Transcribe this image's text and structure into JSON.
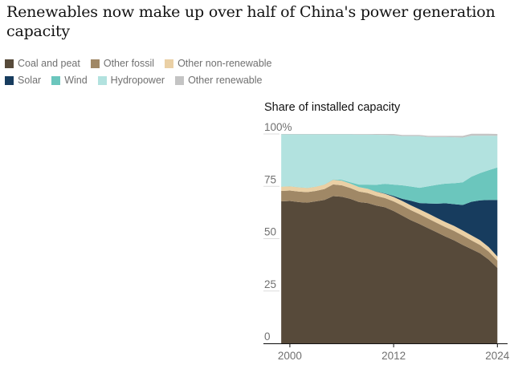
{
  "header": {
    "title": "Renewables now make up over half of China's power generation capacity"
  },
  "legend": {
    "row1": [
      {
        "label": "Coal and peat",
        "color": "#574a3a"
      },
      {
        "label": "Other fossil",
        "color": "#a08866"
      },
      {
        "label": "Other non-renewable",
        "color": "#ead0a5"
      }
    ],
    "row2": [
      {
        "label": "Solar",
        "color": "#173c5e"
      },
      {
        "label": "Wind",
        "color": "#6bc6bd"
      },
      {
        "label": "Hydropower",
        "color": "#b2e2df"
      },
      {
        "label": "Other renewable",
        "color": "#c4c4c4"
      }
    ]
  },
  "chart_data": {
    "type": "area",
    "stacked": true,
    "title": "Share of installed capacity",
    "ylim": [
      0,
      100
    ],
    "yticks": [
      {
        "value": 0,
        "label": "0"
      },
      {
        "value": 25,
        "label": "25"
      },
      {
        "value": 50,
        "label": "50"
      },
      {
        "value": 75,
        "label": "75"
      },
      {
        "value": 100,
        "label": "100%"
      }
    ],
    "xlim": [
      1998.8,
      2024.9
    ],
    "xticks": [
      {
        "value": 2000,
        "label": "2000"
      },
      {
        "value": 2012,
        "label": "2012"
      },
      {
        "value": 2024,
        "label": "2024"
      }
    ],
    "x": [
      1999,
      2000,
      2001,
      2002,
      2003,
      2004,
      2005,
      2006,
      2007,
      2008,
      2009,
      2010,
      2011,
      2012,
      2013,
      2014,
      2015,
      2016,
      2017,
      2018,
      2019,
      2020,
      2021,
      2022,
      2023,
      2024
    ],
    "series": [
      {
        "name": "Coal and peat",
        "color": "#574a3a",
        "values": [
          67.8,
          68.0,
          67.5,
          67.2,
          67.8,
          68.5,
          70.3,
          70.0,
          69.0,
          67.5,
          67.0,
          65.8,
          65.0,
          63.2,
          61.0,
          58.8,
          57.0,
          55.0,
          53.0,
          51.0,
          49.2,
          47.0,
          45.0,
          43.0,
          40.0,
          36.0
        ]
      },
      {
        "name": "Other fossil",
        "color": "#a08866",
        "values": [
          5.0,
          5.0,
          5.0,
          5.0,
          5.0,
          5.2,
          5.6,
          5.5,
          5.2,
          5.0,
          4.8,
          4.6,
          4.4,
          4.6,
          4.8,
          4.8,
          4.7,
          4.6,
          4.5,
          4.5,
          4.5,
          4.5,
          4.2,
          4.0,
          3.8,
          3.5
        ]
      },
      {
        "name": "Other non-renewable",
        "color": "#ead0a5",
        "values": [
          2.0,
          2.0,
          2.0,
          2.0,
          2.0,
          2.1,
          2.2,
          2.2,
          2.1,
          2.1,
          2.0,
          2.0,
          2.0,
          2.1,
          2.2,
          2.3,
          2.3,
          2.4,
          2.4,
          2.4,
          2.4,
          2.4,
          2.4,
          2.3,
          2.2,
          2.0
        ]
      },
      {
        "name": "Solar",
        "color": "#173c5e",
        "values": [
          0,
          0,
          0,
          0,
          0,
          0,
          0,
          0,
          0,
          0,
          0,
          0.1,
          0.2,
          0.5,
          1.0,
          2.2,
          3.0,
          4.8,
          6.8,
          9.0,
          10.4,
          12.2,
          16.0,
          19.0,
          22.5,
          27.0
        ]
      },
      {
        "name": "Wind",
        "color": "#6bc6bd",
        "values": [
          0.1,
          0.1,
          0.1,
          0.1,
          0.1,
          0.1,
          0.2,
          0.4,
          0.6,
          1.2,
          2.0,
          3.2,
          4.6,
          5.4,
          6.5,
          6.8,
          7.3,
          8.2,
          9.0,
          9.4,
          10.0,
          10.8,
          12.0,
          13.0,
          14.2,
          15.5
        ]
      },
      {
        "name": "Hydropower",
        "color": "#b2e2df",
        "values": [
          24.9,
          24.7,
          25.2,
          25.5,
          24.9,
          23.9,
          21.5,
          21.7,
          22.9,
          23.9,
          23.9,
          23.9,
          23.3,
          23.6,
          23.5,
          24.1,
          24.7,
          23.5,
          22.8,
          22.2,
          21.9,
          21.4,
          19.6,
          17.9,
          16.5,
          15.1
        ]
      },
      {
        "name": "Other renewable",
        "color": "#c4c4c4",
        "values": [
          0.2,
          0.2,
          0.2,
          0.2,
          0.2,
          0.2,
          0.2,
          0.2,
          0.2,
          0.3,
          0.3,
          0.4,
          0.5,
          0.6,
          0.5,
          0.5,
          0.5,
          0.6,
          0.6,
          0.6,
          0.7,
          0.8,
          0.9,
          0.9,
          0.9,
          0.9
        ]
      }
    ]
  }
}
